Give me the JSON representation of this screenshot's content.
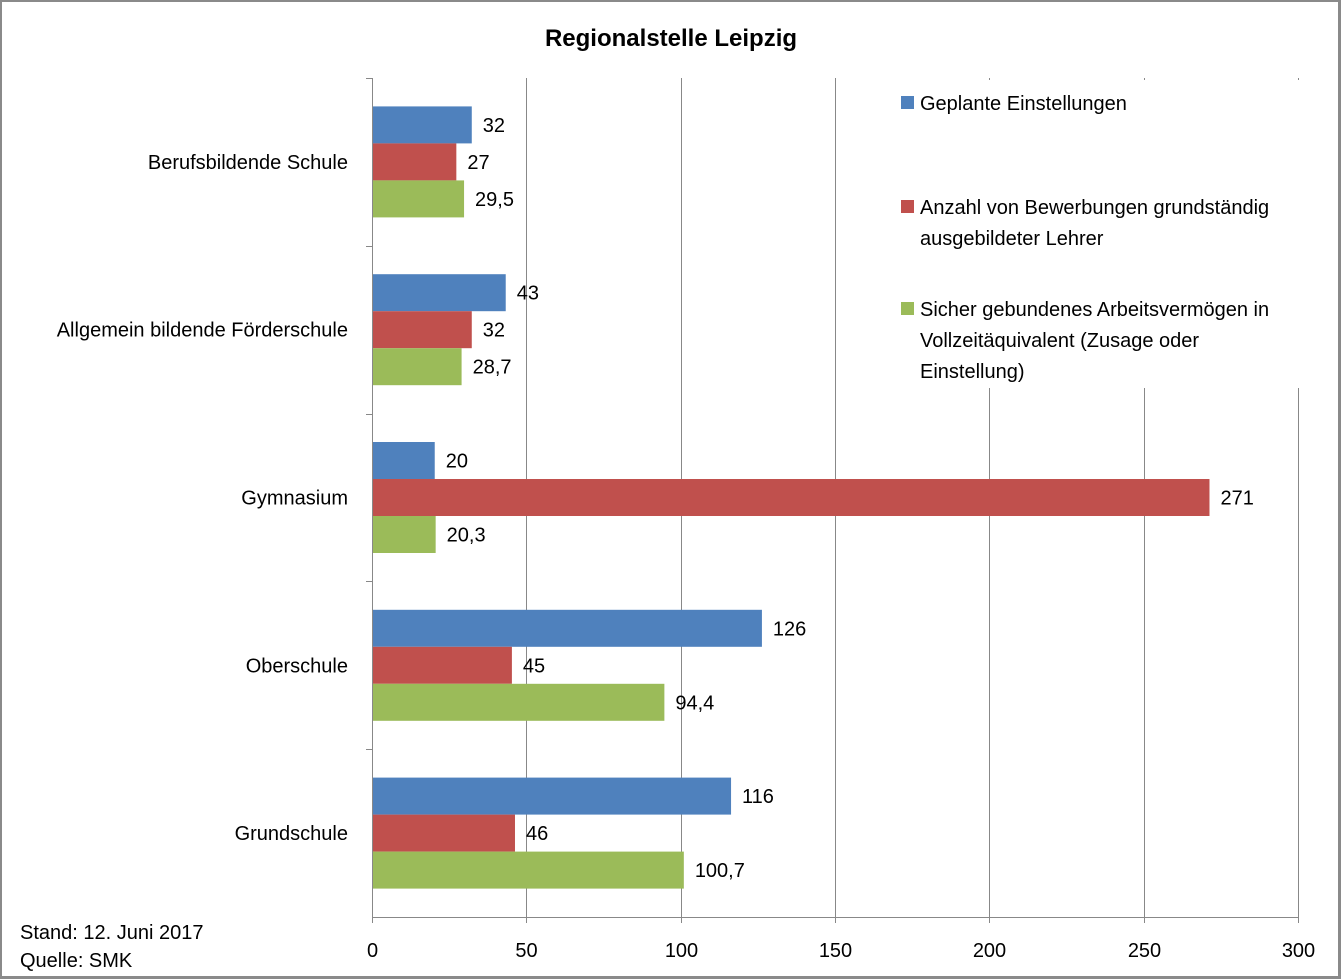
{
  "chart_data": {
    "type": "bar",
    "orientation": "horizontal",
    "title": "Regionalstelle Leipzig",
    "categories": [
      "Berufsbildende Schule",
      "Allgemein bildende Förderschule",
      "Gymnasium",
      "Oberschule",
      "Grundschule"
    ],
    "series": [
      {
        "name": "Geplante Einstellungen",
        "color": "#4F81BD",
        "values": [
          32,
          43,
          20,
          126,
          116
        ],
        "labels": [
          "32",
          "43",
          "20",
          "126",
          "116"
        ]
      },
      {
        "name": "Anzahl von Bewerbungen grundständig ausgebildeter Lehrer",
        "color": "#C0504D",
        "values": [
          27,
          32,
          271,
          45,
          46
        ],
        "labels": [
          "27",
          "32",
          "271",
          "45",
          "46"
        ]
      },
      {
        "name": "Sicher gebundenes Arbeitsvermögen in Vollzeitäquivalent (Zusage oder Einstellung)",
        "color": "#9BBB59",
        "values": [
          29.5,
          28.7,
          20.3,
          94.4,
          100.7
        ],
        "labels": [
          "29,5",
          "28,7",
          "20,3",
          "94,4",
          "100,7"
        ]
      }
    ],
    "xlim": [
      0,
      300
    ],
    "xticks": [
      "0",
      "50",
      "100",
      "150",
      "200",
      "250",
      "300"
    ],
    "xlabel": "",
    "ylabel": "",
    "grid": "vertical",
    "legend_placement": "top-right"
  },
  "legend": {
    "lines": [
      [
        "Geplante Einstellungen"
      ],
      [
        "Anzahl von Bewerbungen grundständig",
        "ausgebildeter Lehrer"
      ],
      [
        "Sicher gebundenes Arbeitsvermögen in",
        "Vollzeitäquivalent (Zusage oder",
        "Einstellung)"
      ]
    ]
  },
  "footer": {
    "stand": "Stand: 12. Juni 2017",
    "quelle": "Quelle: SMK"
  }
}
